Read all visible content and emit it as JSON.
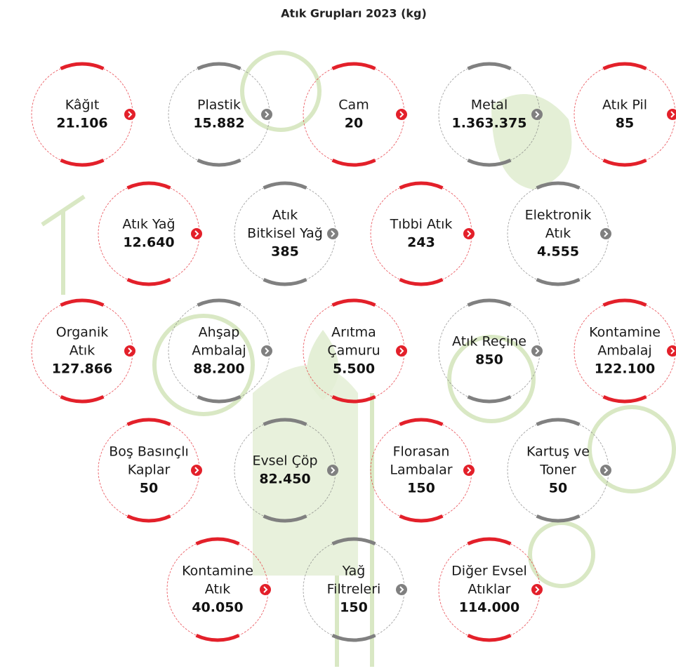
{
  "title": "Atık Grupları 2023 (kg)",
  "rows": [
    [
      {
        "label": [
          "Kâğıt"
        ],
        "value": "21.106",
        "color": "#e3202a"
      },
      {
        "label": [
          "Plastik"
        ],
        "value": "15.882",
        "color": "#808080"
      },
      {
        "label": [
          "Cam"
        ],
        "value": "20",
        "color": "#e3202a"
      },
      {
        "label": [
          "Metal"
        ],
        "value": "1.363.375",
        "color": "#808080"
      },
      {
        "label": [
          "Atık Pil"
        ],
        "value": "85",
        "color": "#e3202a"
      }
    ],
    [
      {
        "label": [
          "Atık Yağ"
        ],
        "value": "12.640",
        "color": "#e3202a"
      },
      {
        "label": [
          "Atık",
          "Bitkisel Yağ"
        ],
        "value": "385",
        "color": "#808080"
      },
      {
        "label": [
          "Tıbbi Atık"
        ],
        "value": "243",
        "color": "#e3202a"
      },
      {
        "label": [
          "Elektronik",
          "Atık"
        ],
        "value": "4.555",
        "color": "#808080"
      }
    ],
    [
      {
        "label": [
          "Organik",
          "Atık"
        ],
        "value": "127.866",
        "color": "#e3202a"
      },
      {
        "label": [
          "Ahşap",
          "Ambalaj"
        ],
        "value": "88.200",
        "color": "#808080"
      },
      {
        "label": [
          "Arıtma",
          "Çamuru"
        ],
        "value": "5.500",
        "color": "#e3202a"
      },
      {
        "label": [
          "Atık Reçine"
        ],
        "value": "850",
        "color": "#808080"
      },
      {
        "label": [
          "Kontamine",
          "Ambalaj"
        ],
        "value": "122.100",
        "color": "#e3202a"
      }
    ],
    [
      {
        "label": [
          "Boş Basınçlı",
          "Kaplar"
        ],
        "value": "50",
        "color": "#e3202a"
      },
      {
        "label": [
          "Evsel Çöp"
        ],
        "value": "82.450",
        "color": "#808080"
      },
      {
        "label": [
          "Florasan",
          "Lambalar"
        ],
        "value": "150",
        "color": "#e3202a"
      },
      {
        "label": [
          "Kartuş ve",
          "Toner"
        ],
        "value": "50",
        "color": "#808080"
      }
    ],
    [
      {
        "label": [
          "Kontamine",
          "Atık"
        ],
        "value": "40.050",
        "color": "#e3202a"
      },
      {
        "label": [
          "Yağ",
          "Filtreleri"
        ],
        "value": "150",
        "color": "#808080"
      },
      {
        "label": [
          "Diğer Evsel",
          "Atıklar"
        ],
        "value": "114.000",
        "color": "#e3202a"
      }
    ]
  ]
}
